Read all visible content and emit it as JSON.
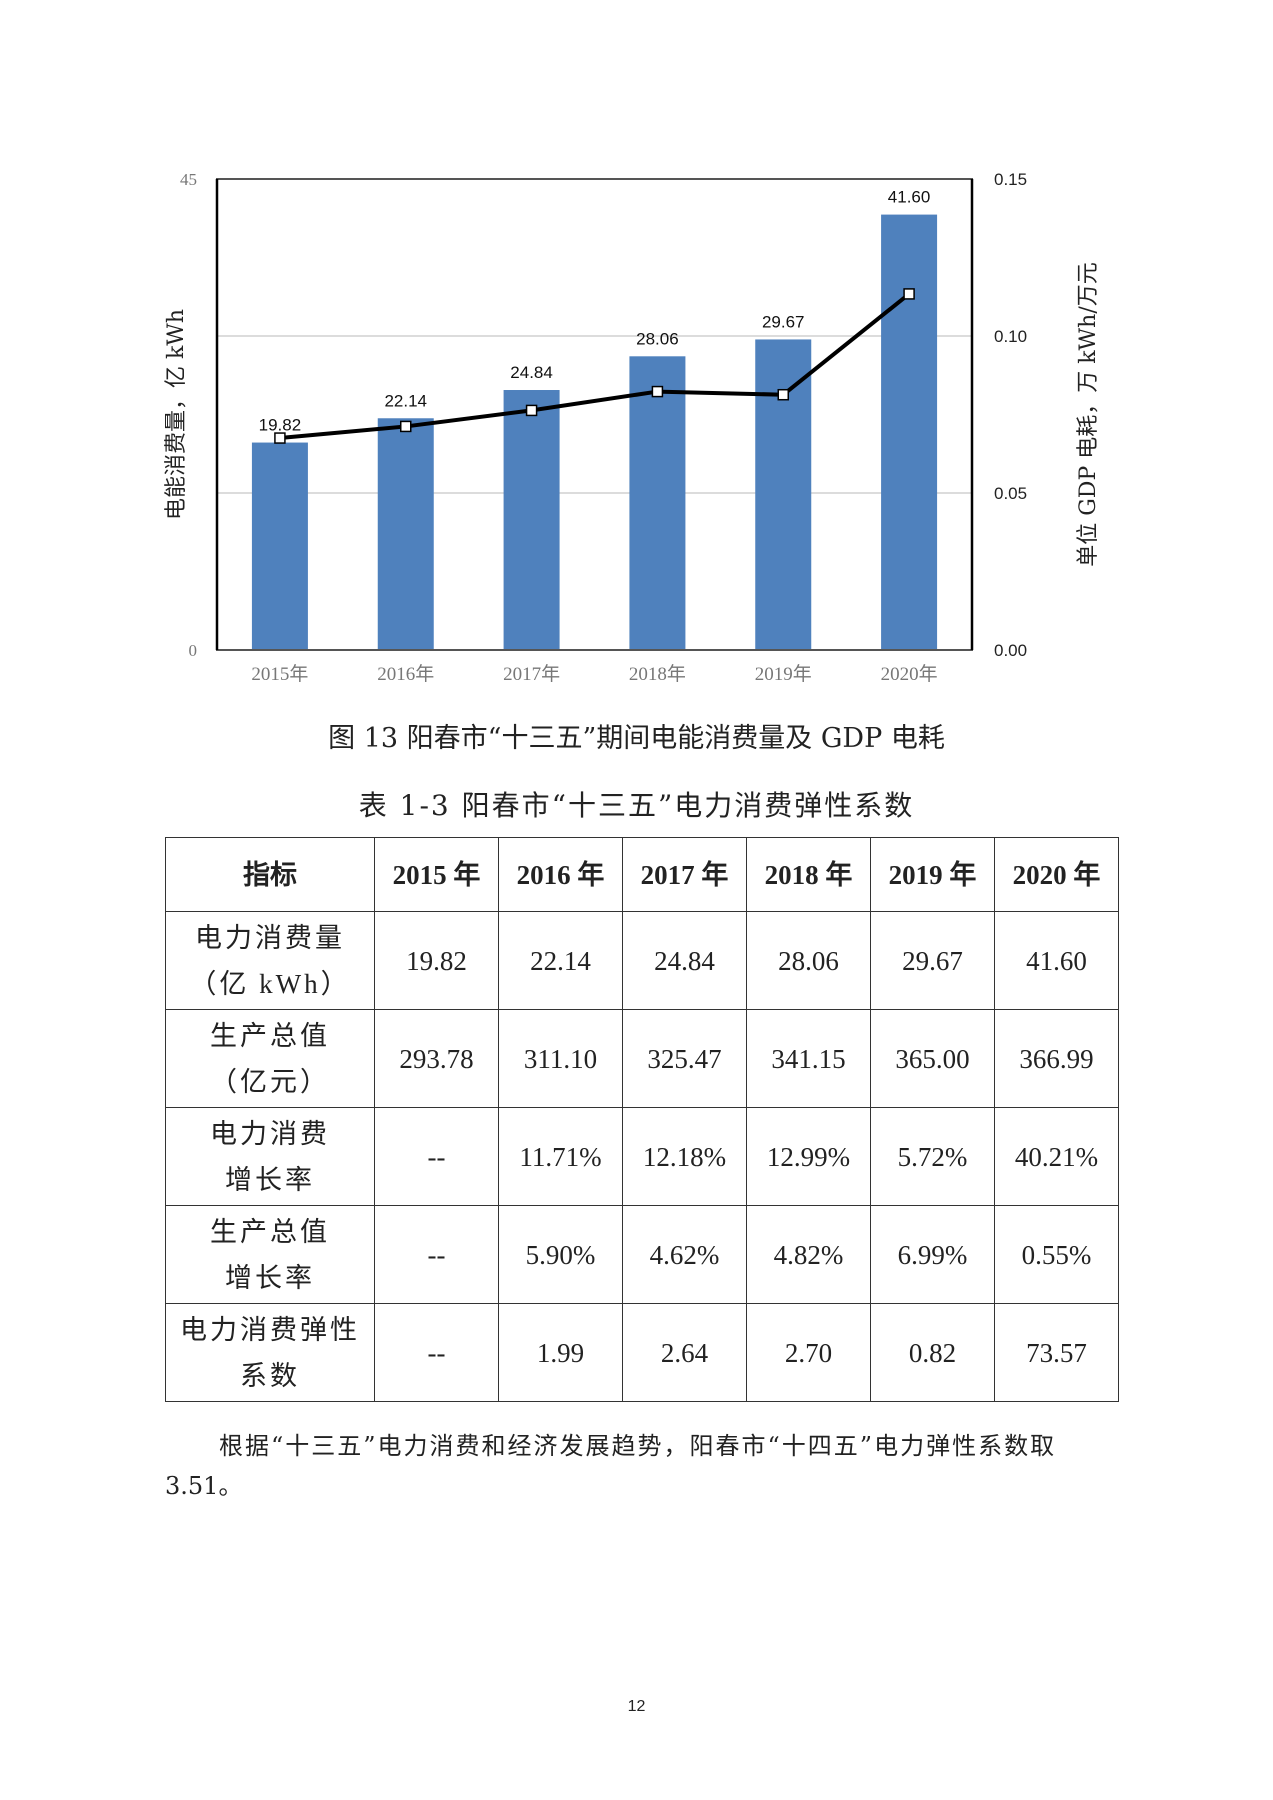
{
  "chart_data": {
    "type": "bar",
    "categories": [
      "2015年",
      "2016年",
      "2017年",
      "2018年",
      "2019年",
      "2020年"
    ],
    "series": [
      {
        "name": "电能消费量",
        "type": "bar",
        "axis": "left",
        "values": [
          19.82,
          22.14,
          24.84,
          28.06,
          29.67,
          41.6
        ],
        "labels": [
          "19.82",
          "22.14",
          "24.84",
          "28.06",
          "29.67",
          "41.60"
        ],
        "color": "#4f81bd"
      },
      {
        "name": "GDP电耗",
        "type": "line",
        "axis": "right",
        "values": [
          0.0675,
          0.0712,
          0.0763,
          0.0823,
          0.0813,
          0.1134
        ],
        "color": "#000000"
      }
    ],
    "ylabel": "电能消费量，亿 kWh",
    "y2label": "单位 GDP 电耗，万 kWh/万元",
    "ylim": [
      0,
      45
    ],
    "y2lim": [
      0,
      0.15
    ],
    "yticks": [
      "0",
      "45"
    ],
    "y2ticks": [
      "0.00",
      "0.05",
      "0.10",
      "0.15"
    ],
    "grid": true
  },
  "figure_caption": "图 13 阳春市“十三五”期间电能消费量及 GDP 电耗",
  "table": {
    "title": "表 1-3 阳春市“十三五”电力消费弹性系数",
    "headers": [
      "指标",
      "2015 年",
      "2016 年",
      "2017 年",
      "2018 年",
      "2019 年",
      "2020 年"
    ],
    "rows": [
      {
        "label1": "电力消费量",
        "label2": "（亿 kWh）",
        "cells": [
          "19.82",
          "22.14",
          "24.84",
          "28.06",
          "29.67",
          "41.60"
        ]
      },
      {
        "label1": "生产总值",
        "label2": "（亿元）",
        "cells": [
          "293.78",
          "311.10",
          "325.47",
          "341.15",
          "365.00",
          "366.99"
        ]
      },
      {
        "label1": "电力消费",
        "label2": "增长率",
        "cells": [
          "--",
          "11.71%",
          "12.18%",
          "12.99%",
          "5.72%",
          "40.21%"
        ]
      },
      {
        "label1": "生产总值",
        "label2": "增长率",
        "cells": [
          "--",
          "5.90%",
          "4.62%",
          "4.82%",
          "6.99%",
          "0.55%"
        ]
      },
      {
        "label1": "电力消费弹性",
        "label2": "系数",
        "cells": [
          "--",
          "1.99",
          "2.64",
          "2.70",
          "0.82",
          "73.57"
        ]
      }
    ]
  },
  "paragraph_line1": "根据“十三五”电力消费和经济发展趋势，阳春市“十四五”电力弹性系数取",
  "paragraph_line2": "3.51。",
  "page_number": "12"
}
